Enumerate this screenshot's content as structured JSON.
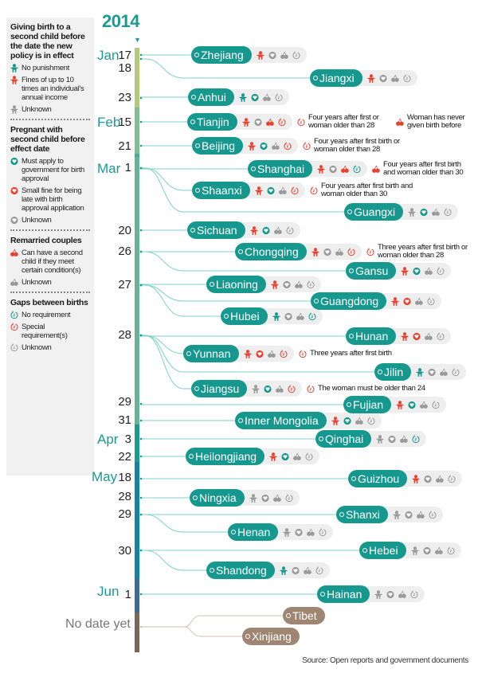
{
  "colors": {
    "teal": "#17988f",
    "red": "#e8412f",
    "gray": "#9a9a9a",
    "brown": "#9e8672",
    "line": "#7fd0c8"
  },
  "legend": {
    "sections": [
      {
        "title": "Giving birth to a second child before the date the new policy is in effect",
        "icon": "child-icon",
        "items": [
          {
            "color": "teal",
            "label": "No punishment"
          },
          {
            "color": "red",
            "label": "Fines of up to 10 times an individual's annual income"
          },
          {
            "color": "gray",
            "label": "Unknown"
          }
        ]
      },
      {
        "title": "Pregnant with second child before effect date",
        "icon": "pregnant-icon",
        "items": [
          {
            "color": "teal",
            "label": "Must apply to government for birth approval"
          },
          {
            "color": "red",
            "label": "Small fine for being late with birth approval application"
          },
          {
            "color": "gray",
            "label": "Unknown"
          }
        ]
      },
      {
        "title": "Remarried couples",
        "icon": "cherries-icon",
        "items": [
          {
            "color": "red",
            "label": "Can have a second child if they meet certain condition(s)"
          },
          {
            "color": "gray",
            "label": "Unknown"
          }
        ]
      },
      {
        "title": "Gaps between births",
        "icon": "timer-icon",
        "items": [
          {
            "color": "teal",
            "label": "No requirement"
          },
          {
            "color": "red",
            "label": "Special requirement(s)"
          },
          {
            "color": "gray",
            "label": "Unknown"
          }
        ]
      }
    ]
  },
  "year": "2014",
  "months": [
    {
      "label": "Jan"
    },
    {
      "label": "Feb"
    },
    {
      "label": "Mar"
    },
    {
      "label": "Apr"
    },
    {
      "label": "May"
    },
    {
      "label": "Jun"
    }
  ],
  "days": [
    "17",
    "18",
    "23",
    "15",
    "21",
    "1",
    "20",
    "26",
    "27",
    "28",
    "29",
    "31",
    "3",
    "22",
    "18",
    "28",
    "29",
    "30",
    "1"
  ],
  "no_date_label": "No date yet",
  "provinces": [
    {
      "name": "Zhejiang",
      "date": "Jan 17",
      "icons": [
        "red",
        "gray",
        "gray",
        "gray"
      ]
    },
    {
      "name": "Jiangxi",
      "date": "Jan 18",
      "icons": [
        "red",
        "gray",
        "gray",
        "gray"
      ]
    },
    {
      "name": "Anhui",
      "date": "Jan 23",
      "icons": [
        "teal",
        "teal",
        "gray",
        "gray"
      ]
    },
    {
      "name": "Tianjin",
      "date": "Feb 15",
      "icons": [
        "red",
        "gray",
        "red",
        "red"
      ],
      "notes": [
        {
          "icon": "timer",
          "text": "Four years after first or woman older than 28"
        },
        {
          "icon": "cherries",
          "text": "Woman has never given birth before"
        }
      ]
    },
    {
      "name": "Beijing",
      "date": "Feb 21",
      "icons": [
        "red",
        "teal",
        "gray",
        "red"
      ],
      "notes": [
        {
          "icon": "timer",
          "text": "Four years after first birth or woman older than 28"
        }
      ]
    },
    {
      "name": "Shanghai",
      "date": "Mar 1",
      "icons": [
        "red",
        "gray",
        "red",
        "teal"
      ],
      "notes": [
        {
          "icon": "cherries",
          "text": "Four years after first birth and woman older than 30"
        }
      ]
    },
    {
      "name": "Shaanxi",
      "date": "Mar 1",
      "icons": [
        "red",
        "teal",
        "gray",
        "red"
      ],
      "notes": [
        {
          "icon": "timer",
          "text": "Four years after first birth and woman older than 30"
        }
      ]
    },
    {
      "name": "Guangxi",
      "date": "Mar 1",
      "icons": [
        "gray",
        "teal",
        "gray",
        "gray"
      ]
    },
    {
      "name": "Sichuan",
      "date": "Mar 20",
      "icons": [
        "red",
        "teal",
        "gray",
        "gray"
      ]
    },
    {
      "name": "Chongqing",
      "date": "Mar 26",
      "icons": [
        "red",
        "gray",
        "gray",
        "red"
      ],
      "notes": [
        {
          "icon": "timer",
          "text": "Three years after first  birth or woman older than 28"
        }
      ]
    },
    {
      "name": "Gansu",
      "date": "Mar 26",
      "icons": [
        "red",
        "teal",
        "gray",
        "gray"
      ]
    },
    {
      "name": "Liaoning",
      "date": "Mar 27",
      "icons": [
        "red",
        "gray",
        "gray",
        "gray"
      ]
    },
    {
      "name": "Guangdong",
      "date": "Mar 27",
      "icons": [
        "red",
        "red",
        "gray",
        "gray"
      ]
    },
    {
      "name": "Hubei",
      "date": "Mar 27",
      "icons": [
        "teal",
        "gray",
        "gray",
        "teal"
      ]
    },
    {
      "name": "Hunan",
      "date": "Mar 28",
      "icons": [
        "red",
        "red",
        "gray",
        "gray"
      ]
    },
    {
      "name": "Yunnan",
      "date": "Mar 28",
      "icons": [
        "red",
        "red",
        "gray",
        "red"
      ],
      "notes": [
        {
          "icon": "timer",
          "text": "Three years after first birth"
        }
      ]
    },
    {
      "name": "Jilin",
      "date": "Mar 28",
      "icons": [
        "teal",
        "gray",
        "gray",
        "gray"
      ]
    },
    {
      "name": "Jiangsu",
      "date": "Mar 28",
      "icons": [
        "gray",
        "teal",
        "gray",
        "red"
      ],
      "notes": [
        {
          "icon": "timer",
          "text": "The woman must be older than 24"
        }
      ]
    },
    {
      "name": "Fujian",
      "date": "Mar 29",
      "icons": [
        "red",
        "teal",
        "gray",
        "gray"
      ]
    },
    {
      "name": "Inner Mongolia",
      "date": "Mar 31",
      "icons": [
        "red",
        "teal",
        "gray",
        "gray"
      ]
    },
    {
      "name": "Qinghai",
      "date": "Apr 3",
      "icons": [
        "gray",
        "gray",
        "gray",
        "teal"
      ]
    },
    {
      "name": "Heilongjiang",
      "date": "Apr 22",
      "icons": [
        "red",
        "teal",
        "gray",
        "gray"
      ]
    },
    {
      "name": "Guizhou",
      "date": "May 18",
      "icons": [
        "red",
        "gray",
        "gray",
        "gray"
      ]
    },
    {
      "name": "Ningxia",
      "date": "May 28",
      "icons": [
        "gray",
        "gray",
        "gray",
        "gray"
      ]
    },
    {
      "name": "Shanxi",
      "date": "May 29",
      "icons": [
        "gray",
        "gray",
        "gray",
        "gray"
      ]
    },
    {
      "name": "Henan",
      "date": "May 29",
      "icons": [
        "gray",
        "gray",
        "gray",
        "gray"
      ]
    },
    {
      "name": "Hebei",
      "date": "May 30",
      "icons": [
        "gray",
        "gray",
        "gray",
        "gray"
      ]
    },
    {
      "name": "Shandong",
      "date": "May 30",
      "icons": [
        "teal",
        "gray",
        "gray",
        "gray"
      ]
    },
    {
      "name": "Hainan",
      "date": "Jun 1",
      "icons": [
        "gray",
        "gray",
        "gray",
        "gray"
      ]
    },
    {
      "name": "Tibet",
      "date": "No date yet",
      "icons": []
    },
    {
      "name": "Xinjiang",
      "date": "No date yet",
      "icons": []
    }
  ],
  "source": "Source: Open reports and government documents"
}
